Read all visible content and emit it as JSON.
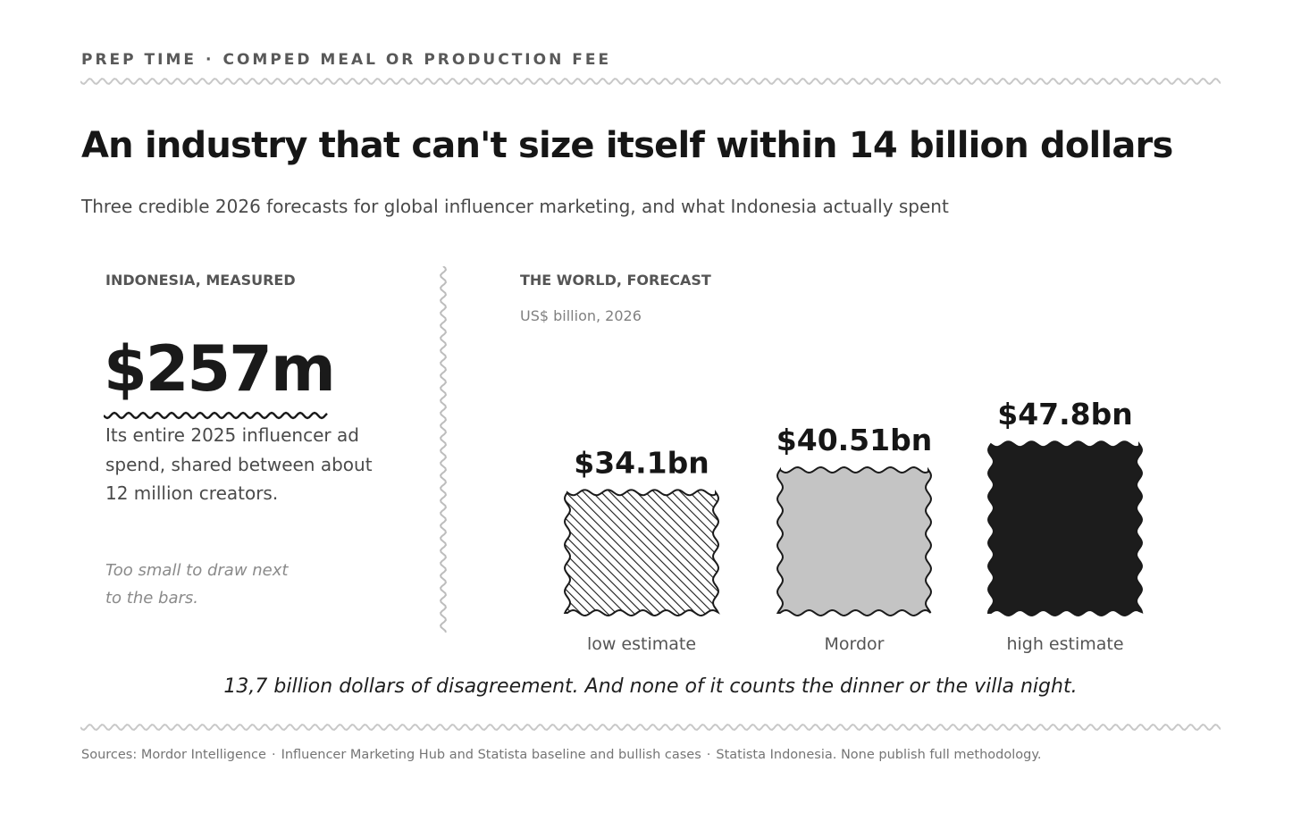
{
  "header": {
    "kicker_left": "PREP TIME",
    "kicker_sep": "·",
    "kicker_right": "COMPED MEAL OR PRODUCTION FEE"
  },
  "title": "An industry that can't size itself within 14 billion dollars",
  "subtitle": "Three credible 2026 forecasts for global influencer marketing, and what Indonesia actually spent",
  "indonesia": {
    "label": "INDONESIA, MEASURED",
    "value": "$257m",
    "description": "Its entire 2025 influencer ad spend, shared between about 12 million creators.",
    "note": "Too small to draw next to the bars."
  },
  "world": {
    "label": "THE WORLD, FORECAST"
  },
  "chart_data": {
    "type": "bar",
    "title": "THE WORLD, FORECAST",
    "ylabel": "US$ billion, 2026",
    "categories": [
      "low estimate",
      "Mordor",
      "high estimate"
    ],
    "values": [
      34.1,
      40.51,
      47.8
    ],
    "data_labels": [
      "$34.1bn",
      "$40.51bn",
      "$47.8bn"
    ],
    "fills": [
      "hatched",
      "#c4c4c4",
      "#1c1c1c"
    ],
    "grid": false,
    "legend": "none"
  },
  "takeaway": "13,7 billion dollars of disagreement. And none of it counts the dinner or the villa night.",
  "sources": {
    "items": [
      "Sources: Mordor Intelligence",
      "Influencer Marketing Hub and Statista baseline and bullish cases",
      "Statista Indonesia. None publish full methodology."
    ],
    "sep": "·"
  },
  "colors": {
    "ink": "#1a1a1a",
    "muted": "#595959",
    "rule": "#c8c8c8",
    "bar_mid": "#c4c4c4",
    "bar_dark": "#1c1c1c"
  }
}
